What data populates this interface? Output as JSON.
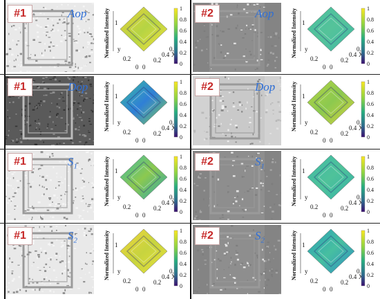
{
  "panels": [
    {
      "badge": "#1",
      "label": "Aop",
      "sub": "",
      "variant": "s1",
      "grad": "g1"
    },
    {
      "badge": "#2",
      "label": "Aop",
      "sub": "",
      "variant": "s2",
      "grad": "g2"
    },
    {
      "badge": "#1",
      "label": "Dop",
      "sub": "",
      "variant": "s1dark",
      "grad": "g3"
    },
    {
      "badge": "#2",
      "label": "Dop",
      "sub": "",
      "variant": "s2lite",
      "grad": "g4"
    },
    {
      "badge": "#1",
      "label": "S",
      "sub": "1",
      "variant": "s1",
      "grad": "g5"
    },
    {
      "badge": "#2",
      "label": "S",
      "sub": "1",
      "variant": "s2",
      "grad": "g6"
    },
    {
      "badge": "#1",
      "label": "S",
      "sub": "2",
      "variant": "s1lite",
      "grad": "g7"
    },
    {
      "badge": "#2",
      "label": "S",
      "sub": "2",
      "variant": "s2",
      "grad": "g8"
    }
  ],
  "plot": {
    "zlabel": "Normalized Intensity",
    "xlabel": "X",
    "x_ticks": [
      "0",
      "0.2",
      "0.4",
      "0.6"
    ],
    "y_ticks": [
      "0",
      "0.2"
    ],
    "z_ticks": [
      "1"
    ],
    "y_axis_letter": "y",
    "colorbar_ticks": [
      "1",
      "0.8",
      "0.6",
      "0.4",
      "0.2",
      "0"
    ]
  }
}
